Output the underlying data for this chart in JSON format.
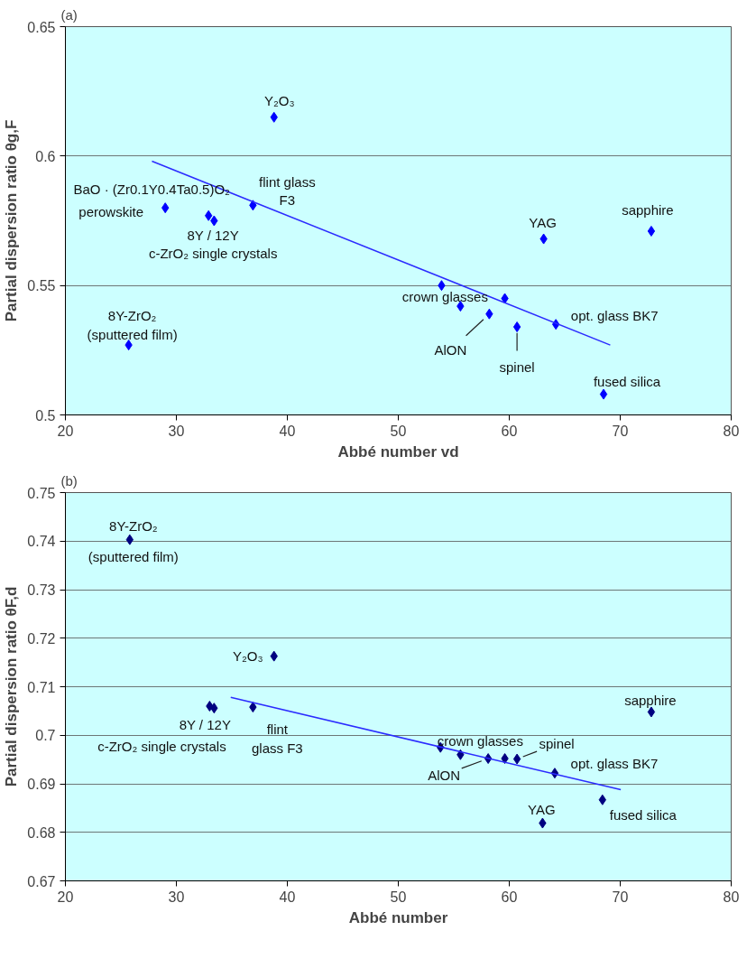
{
  "chart_data": [
    {
      "type": "scatter",
      "title": "(a)",
      "xlabel": "Abbé number vd",
      "ylabel": "Partial dispersion ratio θg,F",
      "xlim": [
        20,
        80
      ],
      "xticks": [
        20,
        30,
        40,
        50,
        60,
        70,
        80
      ],
      "ylim": [
        0.5,
        0.65
      ],
      "yticks": [
        0.5,
        0.55,
        0.6,
        0.65
      ],
      "grid": "y",
      "marker": "diamond",
      "series": [
        {
          "color": "#0000ff",
          "x": [
            25.7,
            29.0,
            32.9,
            33.4,
            36.9,
            38.8,
            53.9,
            55.6,
            58.2,
            59.6,
            60.7,
            63.1,
            64.2,
            68.5,
            72.8
          ],
          "values": [
            0.527,
            0.58,
            0.577,
            0.575,
            0.581,
            0.615,
            0.55,
            0.542,
            0.539,
            0.545,
            0.534,
            0.568,
            0.535,
            0.508,
            0.571
          ]
        },
        {
          "type": "line",
          "color": "#2b2bff",
          "marker": "none",
          "x": [
            27.8,
            69.1
          ],
          "values": [
            0.598,
            0.527
          ]
        }
      ],
      "annotations": [
        {
          "text": "Y₂O₃",
          "x": 38.8,
          "y": 0.615
        },
        {
          "text": "BaO · (Zr0.1Y0.4Ta0.5)O₂",
          "x": 29.0,
          "y": 0.58
        },
        {
          "text": "perowskite",
          "x": 29.0,
          "y": 0.58
        },
        {
          "text": "flint glass\nF3",
          "x": 36.9,
          "y": 0.581
        },
        {
          "text": "8Y / 12Y\nc-ZrO₂ single crystals",
          "x": 32.9,
          "y": 0.577
        },
        {
          "text": "8Y-ZrO₂\n(sputtered film)",
          "x": 25.7,
          "y": 0.527
        },
        {
          "text": "YAG",
          "x": 63.1,
          "y": 0.568
        },
        {
          "text": "sapphire",
          "x": 72.8,
          "y": 0.571
        },
        {
          "text": "crown glasses",
          "x": 55.6,
          "y": 0.542
        },
        {
          "text": "opt. glass BK7",
          "x": 64.2,
          "y": 0.535
        },
        {
          "text": "AlON",
          "x": 58.2,
          "y": 0.539
        },
        {
          "text": "spinel",
          "x": 60.7,
          "y": 0.534
        },
        {
          "text": "fused silica",
          "x": 68.5,
          "y": 0.508
        }
      ]
    },
    {
      "type": "scatter",
      "title": "(b)",
      "xlabel": "Abbé number",
      "ylabel": "Partial dispersion ratio θF,d",
      "xlim": [
        20,
        80
      ],
      "xticks": [
        20,
        30,
        40,
        50,
        60,
        70,
        80
      ],
      "ylim": [
        0.67,
        0.75
      ],
      "yticks": [
        0.67,
        0.68,
        0.69,
        0.7,
        0.71,
        0.72,
        0.73,
        0.74,
        0.75
      ],
      "grid": "y",
      "marker": "diamond",
      "series": [
        {
          "color": "#000080",
          "x": [
            25.8,
            33.0,
            33.4,
            36.9,
            38.8,
            53.8,
            55.6,
            58.1,
            59.6,
            60.7,
            63.0,
            64.1,
            68.4,
            72.8
          ],
          "values": [
            0.7403,
            0.706,
            0.7056,
            0.7058,
            0.7163,
            0.6975,
            0.696,
            0.6952,
            0.6952,
            0.6951,
            0.6819,
            0.6922,
            0.6867,
            0.7048
          ]
        },
        {
          "type": "line",
          "color": "#2b2bff",
          "marker": "none",
          "x": [
            34.9,
            70.05
          ],
          "values": [
            0.7078,
            0.6888
          ]
        }
      ],
      "annotations": [
        {
          "text": "8Y-ZrO₂",
          "x": 25.8,
          "y": 0.7403
        },
        {
          "text": "(sputtered film)",
          "x": 25.8,
          "y": 0.7403
        },
        {
          "text": "Y₂O₃",
          "x": 38.8,
          "y": 0.7163
        },
        {
          "text": "8Y / 12Y",
          "x": 33.0,
          "y": 0.706
        },
        {
          "text": "c-ZrO₂ single crystals",
          "x": 33.0,
          "y": 0.706
        },
        {
          "text": "flint\nglass F3",
          "x": 36.9,
          "y": 0.7058
        },
        {
          "text": "sapphire",
          "x": 72.8,
          "y": 0.7048
        },
        {
          "text": "crown glasses",
          "x": 55.6,
          "y": 0.696
        },
        {
          "text": "spinel",
          "x": 60.7,
          "y": 0.6951
        },
        {
          "text": "opt. glass BK7",
          "x": 64.1,
          "y": 0.6922
        },
        {
          "text": "AlON",
          "x": 58.1,
          "y": 0.6952
        },
        {
          "text": "YAG",
          "x": 63.0,
          "y": 0.6819
        },
        {
          "text": "fused silica",
          "x": 68.4,
          "y": 0.6867
        }
      ]
    }
  ]
}
